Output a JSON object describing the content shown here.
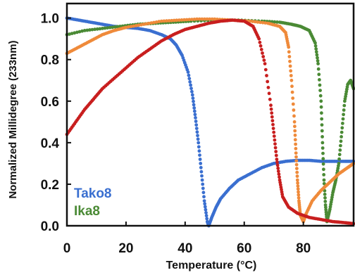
{
  "chart_data": {
    "type": "scatter",
    "title": "",
    "xlabel": "Temperature (°C)",
    "ylabel": "Normalized Millidegree (233nm)",
    "xlim": [
      0,
      97
    ],
    "ylim": [
      0,
      1.07
    ],
    "x_ticks": [
      "0",
      "20",
      "40",
      "60",
      "80"
    ],
    "y_ticks": [
      "0.0",
      "0.2",
      "0.4",
      "0.6",
      "0.8",
      "1.0"
    ],
    "grid": false,
    "legend_position": "bottom-left",
    "series": [
      {
        "name": "Tako8",
        "color": "#3a6fd0",
        "points": [
          [
            0,
            1.0
          ],
          [
            4,
            0.99
          ],
          [
            8,
            0.98
          ],
          [
            12,
            0.97
          ],
          [
            16,
            0.96
          ],
          [
            20,
            0.955
          ],
          [
            24,
            0.95
          ],
          [
            28,
            0.94
          ],
          [
            32,
            0.92
          ],
          [
            35,
            0.9
          ],
          [
            37,
            0.87
          ],
          [
            39,
            0.82
          ],
          [
            41,
            0.74
          ],
          [
            42.5,
            0.63
          ],
          [
            43.5,
            0.52
          ],
          [
            44.5,
            0.4
          ],
          [
            45.5,
            0.26
          ],
          [
            46.5,
            0.12
          ],
          [
            47.5,
            0.02
          ],
          [
            48,
            0.0
          ],
          [
            49,
            0.04
          ],
          [
            50.5,
            0.09
          ],
          [
            52,
            0.13
          ],
          [
            55,
            0.18
          ],
          [
            58,
            0.22
          ],
          [
            62,
            0.25
          ],
          [
            66,
            0.28
          ],
          [
            70,
            0.3
          ],
          [
            74,
            0.31
          ],
          [
            78,
            0.315
          ],
          [
            82,
            0.315
          ],
          [
            86,
            0.31
          ],
          [
            90,
            0.31
          ],
          [
            94,
            0.31
          ],
          [
            97,
            0.31
          ]
        ]
      },
      {
        "name": "Ika8",
        "color": "#4a8a35",
        "points": [
          [
            0,
            0.92
          ],
          [
            6,
            0.94
          ],
          [
            12,
            0.95
          ],
          [
            18,
            0.96
          ],
          [
            24,
            0.97
          ],
          [
            30,
            0.975
          ],
          [
            36,
            0.98
          ],
          [
            42,
            0.985
          ],
          [
            50,
            0.99
          ],
          [
            58,
            0.99
          ],
          [
            66,
            0.985
          ],
          [
            72,
            0.98
          ],
          [
            76,
            0.97
          ],
          [
            79,
            0.96
          ],
          [
            82,
            0.94
          ],
          [
            84,
            0.88
          ],
          [
            85,
            0.78
          ],
          [
            86,
            0.6
          ],
          [
            86.5,
            0.4
          ],
          [
            87,
            0.22
          ],
          [
            87.5,
            0.1
          ],
          [
            88,
            0.02
          ],
          [
            89,
            0.08
          ],
          [
            90,
            0.16
          ],
          [
            91,
            0.22
          ],
          [
            92,
            0.3
          ],
          [
            93,
            0.45
          ],
          [
            94,
            0.6
          ],
          [
            95,
            0.68
          ],
          [
            96,
            0.7
          ],
          [
            97,
            0.66
          ]
        ]
      },
      {
        "name": "",
        "color": "#ef8a3a",
        "points": [
          [
            0,
            0.83
          ],
          [
            4,
            0.86
          ],
          [
            8,
            0.89
          ],
          [
            12,
            0.92
          ],
          [
            16,
            0.94
          ],
          [
            20,
            0.955
          ],
          [
            26,
            0.97
          ],
          [
            32,
            0.985
          ],
          [
            38,
            0.99
          ],
          [
            44,
            0.995
          ],
          [
            50,
            0.995
          ],
          [
            56,
            0.99
          ],
          [
            62,
            0.985
          ],
          [
            68,
            0.975
          ],
          [
            72,
            0.96
          ],
          [
            74,
            0.93
          ],
          [
            75,
            0.86
          ],
          [
            76,
            0.7
          ],
          [
            77,
            0.5
          ],
          [
            77.5,
            0.35
          ],
          [
            78,
            0.22
          ],
          [
            78.5,
            0.12
          ],
          [
            79,
            0.05
          ],
          [
            80,
            0.02
          ],
          [
            81,
            0.06
          ],
          [
            83,
            0.12
          ],
          [
            86,
            0.17
          ],
          [
            89,
            0.21
          ],
          [
            92,
            0.25
          ],
          [
            95,
            0.28
          ],
          [
            97,
            0.3
          ]
        ]
      },
      {
        "name": "",
        "color": "#c81e1e",
        "points": [
          [
            0,
            0.44
          ],
          [
            3,
            0.5
          ],
          [
            6,
            0.56
          ],
          [
            9,
            0.61
          ],
          [
            12,
            0.66
          ],
          [
            16,
            0.71
          ],
          [
            20,
            0.76
          ],
          [
            24,
            0.81
          ],
          [
            28,
            0.85
          ],
          [
            32,
            0.89
          ],
          [
            36,
            0.92
          ],
          [
            40,
            0.945
          ],
          [
            44,
            0.96
          ],
          [
            48,
            0.975
          ],
          [
            52,
            0.985
          ],
          [
            56,
            0.99
          ],
          [
            60,
            0.985
          ],
          [
            63,
            0.96
          ],
          [
            65,
            0.9
          ],
          [
            67,
            0.78
          ],
          [
            69,
            0.58
          ],
          [
            70,
            0.45
          ],
          [
            71,
            0.32
          ],
          [
            72,
            0.22
          ],
          [
            73,
            0.14
          ],
          [
            75,
            0.09
          ],
          [
            78,
            0.06
          ],
          [
            82,
            0.04
          ],
          [
            86,
            0.03
          ],
          [
            90,
            0.02
          ],
          [
            94,
            0.015
          ],
          [
            97,
            0.01
          ]
        ]
      }
    ],
    "legend": [
      {
        "label": "Tako8",
        "color": "#3a6fd0"
      },
      {
        "label": "Ika8",
        "color": "#4a8a35"
      }
    ]
  }
}
